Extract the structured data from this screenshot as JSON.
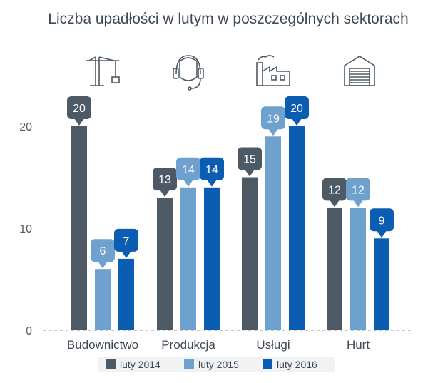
{
  "chart_data": {
    "type": "bar",
    "title": "Liczba upadłości w lutym w poszczególnych sektorach",
    "categories": [
      "Budownictwo",
      "Produkcja",
      "Usługi",
      "Hurt"
    ],
    "category_icons": [
      "construction-crane-icon",
      "headset-icon",
      "factory-icon",
      "warehouse-icon"
    ],
    "series": [
      {
        "name": "luty 2014",
        "color": "#4d5a66",
        "values": [
          20,
          13,
          15,
          12
        ]
      },
      {
        "name": "luty 2015",
        "color": "#6fa1cf",
        "values": [
          6,
          14,
          19,
          12
        ]
      },
      {
        "name": "luty 2016",
        "color": "#0a5db0",
        "values": [
          7,
          14,
          20,
          9
        ]
      }
    ],
    "yticks": [
      0,
      10,
      20
    ],
    "ylim": [
      0,
      20
    ],
    "xlabel": "",
    "ylabel": "",
    "grid": false,
    "legend_position": "bottom"
  }
}
